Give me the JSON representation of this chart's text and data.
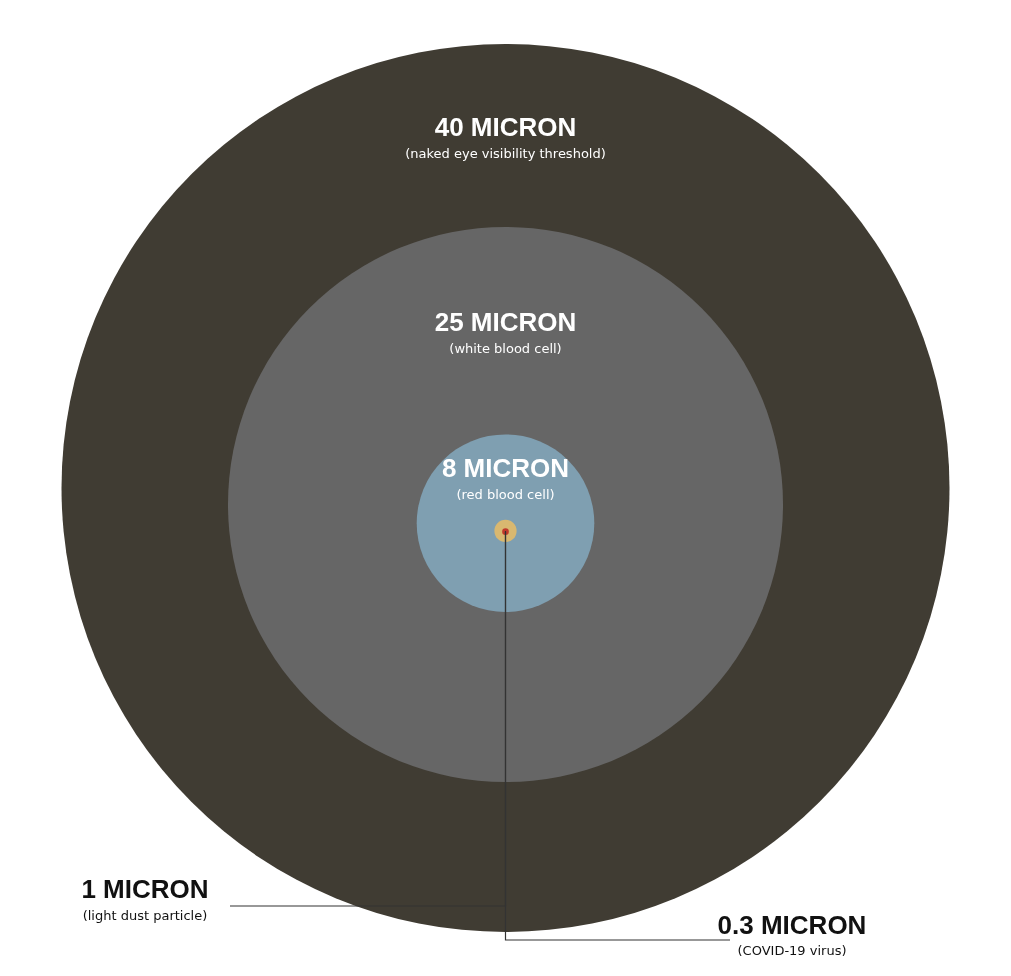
{
  "chart_data": {
    "type": "other",
    "categories": [
      "(naked eye visibility threshold)",
      "(white blood cell)",
      "(red blood cell)",
      "(light dust particle)",
      "(COVID-19 virus)"
    ],
    "values": [
      40,
      25,
      8,
      1,
      0.3
    ],
    "value_labels": [
      "40 MICRON",
      "25 MICRON",
      "8 MICRON",
      "1 MICRON",
      "0.3 MICRON"
    ],
    "colors": [
      "#403c33",
      "#666666",
      "#7f9fb1",
      "#d9b870",
      "#c0392b"
    ]
  }
}
